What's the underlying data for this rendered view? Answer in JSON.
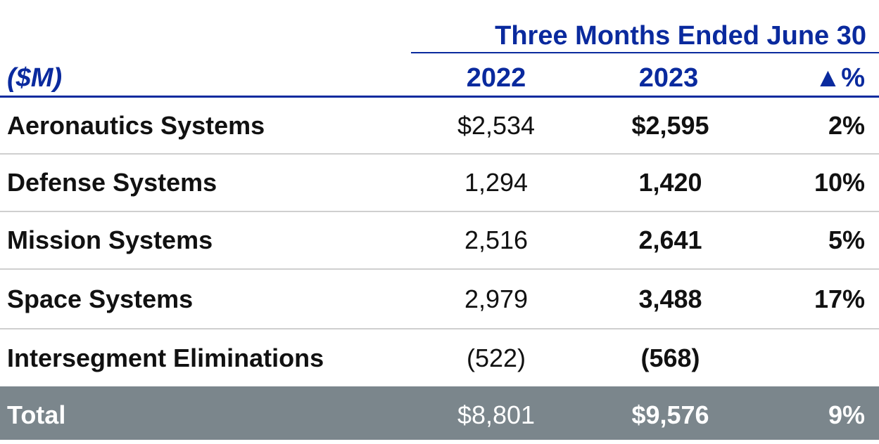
{
  "table": {
    "period_heading": "Three Months Ended June 30",
    "units_label": "($M)",
    "col_2022": "2022",
    "col_2023": "2023",
    "col_change": "▲%",
    "rows": [
      {
        "label": "Aeronautics Systems",
        "v2022": "$2,534",
        "v2023": "$2,595",
        "change": "2%"
      },
      {
        "label": "Defense Systems",
        "v2022": "1,294",
        "v2023": "1,420",
        "change": "10%"
      },
      {
        "label": "Mission Systems",
        "v2022": "2,516",
        "v2023": "2,641",
        "change": "5%"
      },
      {
        "label": "Space Systems",
        "v2022": "2,979",
        "v2023": "3,488",
        "change": "17%"
      },
      {
        "label": "Intersegment Eliminations",
        "v2022": "(522)",
        "v2023": "(568)",
        "change": ""
      }
    ],
    "total": {
      "label": "Total",
      "v2022": "$8,801",
      "v2023": "$9,576",
      "change": "9%"
    }
  }
}
